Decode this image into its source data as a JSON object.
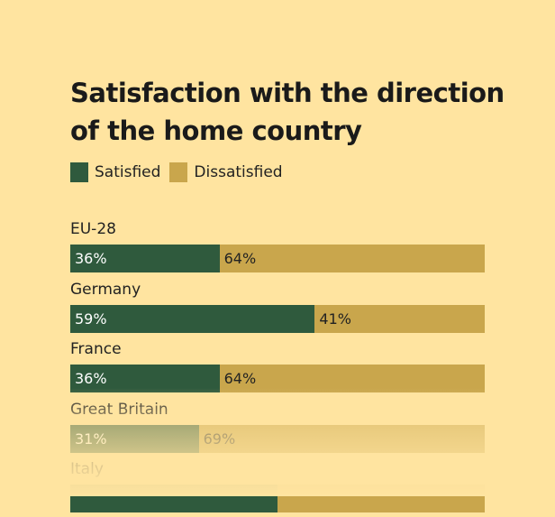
{
  "chart_data": {
    "type": "bar",
    "orientation": "horizontal",
    "stacked": true,
    "title": "Satisfaction with the direction of the home country",
    "legend": {
      "position": "top-left",
      "items": [
        {
          "label": "Satisfied",
          "color": "#2F5A3D"
        },
        {
          "label": "Dissatisfied",
          "color": "#C9A64C"
        }
      ]
    },
    "categories": [
      "EU-28",
      "Germany",
      "France",
      "Great Britain",
      "Italy"
    ],
    "series": [
      {
        "name": "Satisfied",
        "color": "#2F5A3D",
        "values": [
          36,
          59,
          36,
          31,
          null
        ],
        "labels": [
          "36%",
          "59%",
          "36%",
          "31%",
          ""
        ]
      },
      {
        "name": "Dissatisfied",
        "color": "#C9A64C",
        "values": [
          64,
          41,
          64,
          69,
          null
        ],
        "labels": [
          "64%",
          "41%",
          "64%",
          "69%",
          ""
        ]
      }
    ],
    "xlim": [
      0,
      100
    ],
    "grid": false
  }
}
